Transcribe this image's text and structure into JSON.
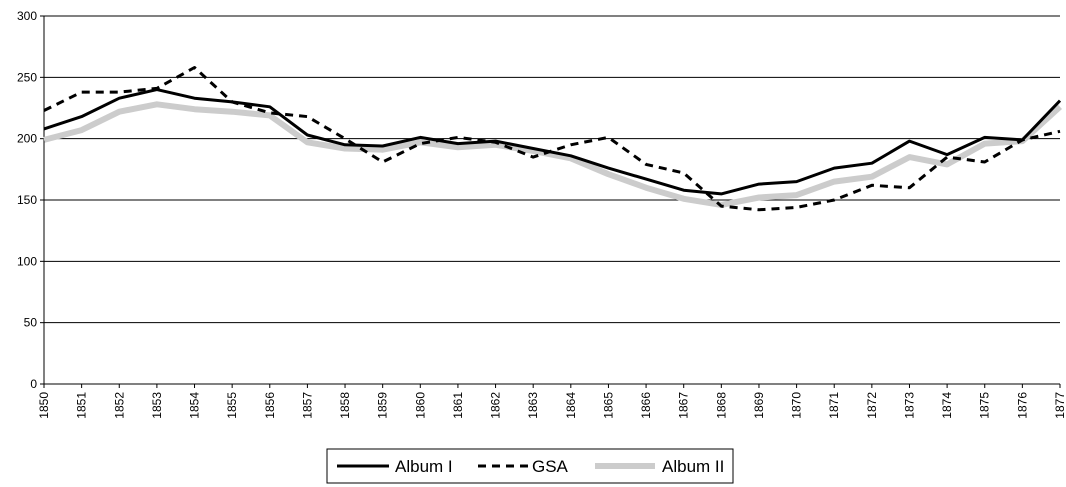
{
  "chart_data": {
    "type": "line",
    "title": "",
    "xlabel": "",
    "ylabel": "",
    "ylim": [
      0,
      300
    ],
    "yticks": [
      "0",
      "50",
      "100",
      "150",
      "200",
      "250",
      "300"
    ],
    "categories": [
      "1850",
      "1851",
      "1852",
      "1853",
      "1854",
      "1855",
      "1856",
      "1857",
      "1858",
      "1859",
      "1860",
      "1861",
      "1862",
      "1863",
      "1864",
      "1865",
      "1866",
      "1867",
      "1868",
      "1869",
      "1870",
      "1871",
      "1872",
      "1873",
      "1874",
      "1875",
      "1876",
      "1877"
    ],
    "grid": "horizontal",
    "legend_position": "bottom-center",
    "series": [
      {
        "name": "Album I",
        "style": "solid",
        "color": "#000000",
        "values": [
          208,
          218,
          233,
          240,
          233,
          230,
          226,
          203,
          195,
          194,
          201,
          196,
          198,
          192,
          186,
          176,
          167,
          158,
          155,
          163,
          165,
          176,
          180,
          198,
          187,
          201,
          199,
          231
        ]
      },
      {
        "name": "GSA",
        "style": "dashed",
        "color": "#000000",
        "values": [
          223,
          238,
          238,
          241,
          258,
          230,
          221,
          218,
          200,
          181,
          196,
          201,
          197,
          185,
          195,
          201,
          179,
          172,
          145,
          142,
          144,
          150,
          162,
          160,
          185,
          181,
          199,
          206
        ]
      },
      {
        "name": "Album II",
        "style": "thick-grey",
        "color": "#cccccc",
        "values": [
          199,
          207,
          222,
          228,
          224,
          222,
          219,
          197,
          192,
          191,
          197,
          193,
          195,
          190,
          184,
          171,
          160,
          151,
          146,
          152,
          154,
          165,
          169,
          185,
          179,
          196,
          198,
          226
        ]
      }
    ]
  }
}
